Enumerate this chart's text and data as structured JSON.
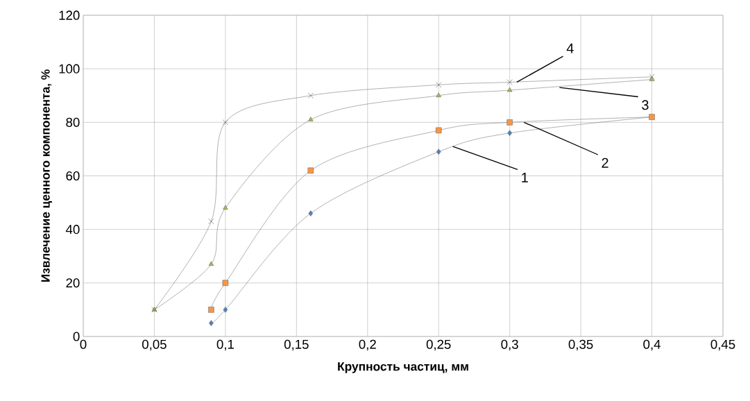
{
  "chart_data": {
    "type": "line",
    "xlabel": "Крупность частиц, мм",
    "ylabel": "Извлечение ценного компонента, %",
    "xlim": [
      0,
      0.45
    ],
    "ylim": [
      0,
      120
    ],
    "xticks": [
      0,
      {
        "value": 0.05,
        "label": "0,05"
      },
      {
        "value": 0.1,
        "label": "0,1"
      },
      {
        "value": 0.15,
        "label": "0,15"
      },
      {
        "value": 0.2,
        "label": "0,2"
      },
      {
        "value": 0.25,
        "label": "0,25"
      },
      {
        "value": 0.3,
        "label": "0,3"
      },
      {
        "value": 0.35,
        "label": "0,35"
      },
      {
        "value": 0.4,
        "label": "0,4"
      },
      {
        "value": 0.45,
        "label": "0,45"
      }
    ],
    "yticks": [
      0,
      20,
      40,
      60,
      80,
      100,
      120
    ],
    "grid": true,
    "series": [
      {
        "marker": "diamond",
        "color": "#4f81bd",
        "x": [
          0.09,
          0.1,
          0.16,
          0.25,
          0.3,
          0.4
        ],
        "values": [
          5,
          10,
          46,
          69,
          76,
          82
        ]
      },
      {
        "marker": "square",
        "color": "#f79646",
        "x": [
          0.09,
          0.1,
          0.16,
          0.25,
          0.3,
          0.4
        ],
        "values": [
          10,
          20,
          62,
          77,
          80,
          82
        ]
      },
      {
        "marker": "triangle",
        "color": "#9bbb59",
        "x": [
          0.05,
          0.09,
          0.1,
          0.16,
          0.25,
          0.3,
          0.4
        ],
        "values": [
          10,
          27,
          48,
          81,
          90,
          92,
          96
        ]
      },
      {
        "marker": "cross",
        "color": "#404040",
        "x": [
          0.05,
          0.09,
          0.1,
          0.16,
          0.25,
          0.3,
          0.4
        ],
        "values": [
          10,
          43,
          80,
          90,
          94,
          95,
          97
        ]
      }
    ],
    "annotations": [
      {
        "text": "1",
        "x": 0.26,
        "y": 71
      },
      {
        "text": "2",
        "x": 0.31,
        "y": 80
      },
      {
        "text": "3",
        "x": 0.335,
        "y": 93
      },
      {
        "text": "4",
        "x": 0.305,
        "y": 95
      }
    ]
  }
}
